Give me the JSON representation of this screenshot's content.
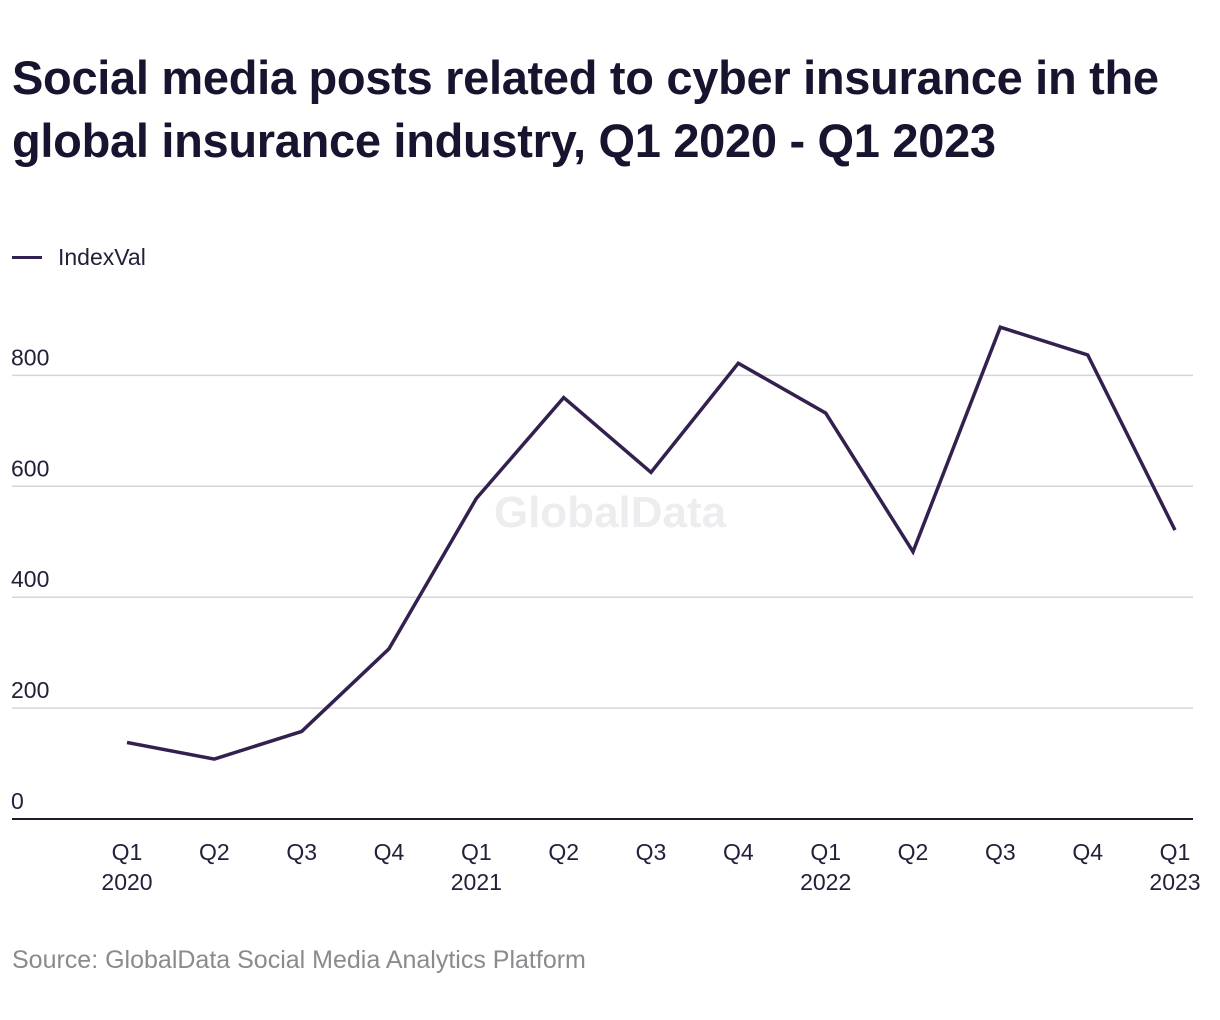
{
  "chart_data": {
    "type": "line",
    "title": "Social media posts related to cyber insurance in the global insurance industry, Q1 2020 - Q1 2023",
    "xlabel": "",
    "ylabel": "",
    "categories": [
      [
        "Q1",
        "2020"
      ],
      [
        "Q2",
        ""
      ],
      [
        "Q3",
        ""
      ],
      [
        "Q4",
        ""
      ],
      [
        "Q1",
        "2021"
      ],
      [
        "Q2",
        ""
      ],
      [
        "Q3",
        ""
      ],
      [
        "Q4",
        ""
      ],
      [
        "Q1",
        "2022"
      ],
      [
        "Q2",
        ""
      ],
      [
        "Q3",
        ""
      ],
      [
        "Q4",
        ""
      ],
      [
        "Q1",
        "2023"
      ]
    ],
    "series": [
      {
        "name": "IndexVal",
        "color": "#33204f",
        "values": [
          138,
          108,
          158,
          307,
          578,
          760,
          625,
          822,
          732,
          482,
          887,
          837,
          521
        ]
      }
    ],
    "yticks": [
      0,
      200,
      400,
      600,
      800
    ],
    "ylim": [
      0,
      900
    ],
    "grid": true,
    "legend_position": "top-left",
    "watermark": "GlobalData"
  },
  "source": "Source: GlobalData Social Media Analytics Platform"
}
